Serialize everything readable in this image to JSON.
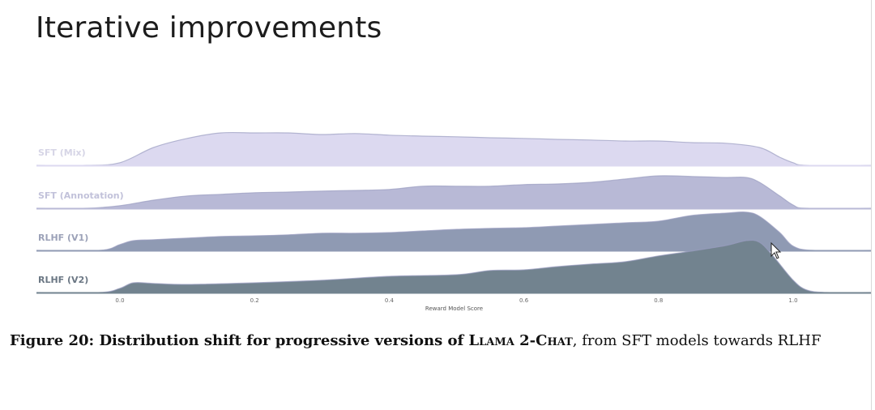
{
  "slide": {
    "title": "Iterative improvements"
  },
  "caption": {
    "label": "Figure 20: Distribution shift for progressive versions of ",
    "model_name": "Llama 2-Chat",
    "rest": ", from SFT models towards RLHF"
  },
  "chart_data": {
    "type": "area",
    "subtype": "ridgeline",
    "xlabel": "Reward Model Score",
    "ylabel": "",
    "xlim": [
      -0.12,
      1.12
    ],
    "xticks": [
      "0.0",
      "0.2",
      "0.4",
      "0.6",
      "0.8",
      "1.0"
    ],
    "grid": false,
    "series": [
      {
        "name": "SFT (Mix)",
        "fill": "#dcd9f0",
        "label_color": "#d6d5e6",
        "points": [
          [
            -0.05,
            0
          ],
          [
            0,
            0.08
          ],
          [
            0.05,
            0.55
          ],
          [
            0.1,
            0.83
          ],
          [
            0.15,
            1.0
          ],
          [
            0.2,
            1.0
          ],
          [
            0.25,
            1.0
          ],
          [
            0.3,
            0.95
          ],
          [
            0.35,
            0.98
          ],
          [
            0.4,
            0.93
          ],
          [
            0.45,
            0.9
          ],
          [
            0.5,
            0.88
          ],
          [
            0.55,
            0.85
          ],
          [
            0.6,
            0.83
          ],
          [
            0.65,
            0.8
          ],
          [
            0.7,
            0.78
          ],
          [
            0.75,
            0.75
          ],
          [
            0.8,
            0.75
          ],
          [
            0.85,
            0.7
          ],
          [
            0.9,
            0.68
          ],
          [
            0.95,
            0.55
          ],
          [
            0.98,
            0.25
          ],
          [
            1.0,
            0.08
          ],
          [
            1.02,
            0
          ]
        ]
      },
      {
        "name": "SFT (Annotation)",
        "fill": "#b8b9d6",
        "label_color": "#c2c2da",
        "points": [
          [
            -0.05,
            0
          ],
          [
            0,
            0.08
          ],
          [
            0.05,
            0.25
          ],
          [
            0.1,
            0.38
          ],
          [
            0.15,
            0.43
          ],
          [
            0.2,
            0.48
          ],
          [
            0.25,
            0.5
          ],
          [
            0.3,
            0.53
          ],
          [
            0.35,
            0.55
          ],
          [
            0.4,
            0.58
          ],
          [
            0.45,
            0.68
          ],
          [
            0.5,
            0.68
          ],
          [
            0.55,
            0.68
          ],
          [
            0.6,
            0.73
          ],
          [
            0.65,
            0.75
          ],
          [
            0.7,
            0.8
          ],
          [
            0.75,
            0.9
          ],
          [
            0.8,
            1.0
          ],
          [
            0.85,
            0.98
          ],
          [
            0.9,
            0.95
          ],
          [
            0.93,
            0.95
          ],
          [
            0.95,
            0.8
          ],
          [
            0.98,
            0.38
          ],
          [
            1.0,
            0.1
          ],
          [
            1.02,
            0
          ]
        ]
      },
      {
        "name": "RLHF (V1)",
        "fill": "#8f9ab3",
        "label_color": "#9ca2b8",
        "points": [
          [
            -0.03,
            0
          ],
          [
            0,
            0.18
          ],
          [
            0.02,
            0.3
          ],
          [
            0.05,
            0.33
          ],
          [
            0.1,
            0.38
          ],
          [
            0.15,
            0.43
          ],
          [
            0.2,
            0.45
          ],
          [
            0.25,
            0.48
          ],
          [
            0.3,
            0.53
          ],
          [
            0.35,
            0.53
          ],
          [
            0.4,
            0.55
          ],
          [
            0.45,
            0.6
          ],
          [
            0.5,
            0.65
          ],
          [
            0.55,
            0.68
          ],
          [
            0.6,
            0.7
          ],
          [
            0.65,
            0.75
          ],
          [
            0.7,
            0.8
          ],
          [
            0.75,
            0.85
          ],
          [
            0.8,
            0.9
          ],
          [
            0.85,
            1.08
          ],
          [
            0.9,
            1.15
          ],
          [
            0.93,
            1.18
          ],
          [
            0.95,
            1.05
          ],
          [
            0.98,
            0.55
          ],
          [
            1.0,
            0.13
          ],
          [
            1.03,
            0
          ]
        ]
      },
      {
        "name": "RLHF (V2)",
        "fill": "#72838f",
        "label_color": "#6b7784",
        "points": [
          [
            -0.03,
            0
          ],
          [
            0,
            0.13
          ],
          [
            0.02,
            0.3
          ],
          [
            0.05,
            0.28
          ],
          [
            0.1,
            0.25
          ],
          [
            0.2,
            0.3
          ],
          [
            0.3,
            0.38
          ],
          [
            0.4,
            0.5
          ],
          [
            0.5,
            0.55
          ],
          [
            0.55,
            0.68
          ],
          [
            0.6,
            0.7
          ],
          [
            0.65,
            0.8
          ],
          [
            0.7,
            0.88
          ],
          [
            0.75,
            0.95
          ],
          [
            0.8,
            1.13
          ],
          [
            0.85,
            1.28
          ],
          [
            0.9,
            1.45
          ],
          [
            0.93,
            1.6
          ],
          [
            0.95,
            1.55
          ],
          [
            0.97,
            1.13
          ],
          [
            1.0,
            0.38
          ],
          [
            1.02,
            0.08
          ],
          [
            1.05,
            0
          ]
        ]
      }
    ]
  }
}
